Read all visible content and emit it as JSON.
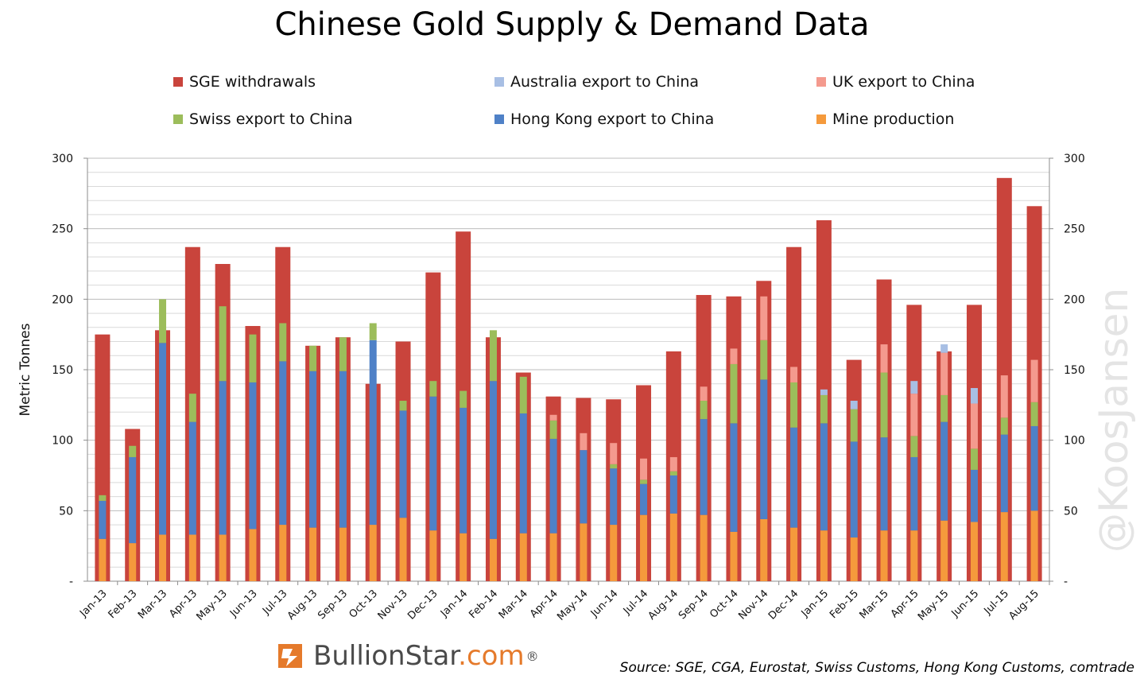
{
  "title": "Chinese Gold Supply & Demand Data",
  "watermark": "@KoosJansen",
  "logo": {
    "name_main": "BullionStar",
    "name_suffix": ".com",
    "reg": "®"
  },
  "source": "Source: SGE, CGA, Eurostat, Swiss Customs, Hong Kong Customs, comtrade",
  "legend": [
    {
      "label": "SGE withdrawals",
      "color": "#c9443c"
    },
    {
      "label": "Australia export to China",
      "color": "#a8bfe4"
    },
    {
      "label": "UK export to China",
      "color": "#f49a8e"
    },
    {
      "label": "Swiss export to China",
      "color": "#9cbd5b"
    },
    {
      "label": "Hong Kong export to China",
      "color": "#4f81c7"
    },
    {
      "label": "Mine production",
      "color": "#f59a3c"
    }
  ],
  "chart_data": {
    "type": "bar",
    "title": "Chinese Gold Supply & Demand Data",
    "ylabel": "Metric Tonnes",
    "ylim": [
      0,
      300
    ],
    "yticks": [
      "-",
      "50",
      "100",
      "150",
      "200",
      "250",
      "300"
    ],
    "grid": true,
    "legend_position": "top",
    "categories": [
      "Jan-13",
      "Feb-13",
      "Mar-13",
      "Apr-13",
      "May-13",
      "Jun-13",
      "Jul-13",
      "Aug-13",
      "Sep-13",
      "Oct-13",
      "Nov-13",
      "Dec-13",
      "Jan-14",
      "Feb-14",
      "Mar-14",
      "Apr-14",
      "May-14",
      "Jun-14",
      "Jul-14",
      "Aug-14",
      "Sep-14",
      "Oct-14",
      "Nov-14",
      "Dec-14",
      "Jan-15",
      "Feb-15",
      "Mar-15",
      "Apr-15",
      "May-15",
      "Jun-15",
      "Jul-15",
      "Aug-15"
    ],
    "sge_withdrawals": [
      175,
      108,
      178,
      237,
      225,
      181,
      237,
      167,
      173,
      140,
      170,
      219,
      248,
      173,
      148,
      131,
      130,
      129,
      139,
      163,
      203,
      202,
      213,
      237,
      256,
      157,
      214,
      196,
      163,
      196,
      286,
      266
    ],
    "stacked_imports": {
      "order": [
        "Mine production",
        "Hong Kong export to China",
        "Swiss export to China",
        "UK export to China",
        "Australia export to China"
      ],
      "series": [
        {
          "name": "Mine production",
          "values": [
            30,
            27,
            33,
            33,
            33,
            37,
            40,
            38,
            38,
            40,
            45,
            36,
            34,
            30,
            34,
            34,
            41,
            40,
            47,
            48,
            47,
            35,
            44,
            38,
            36,
            31,
            36,
            36,
            43,
            42,
            49,
            50
          ]
        },
        {
          "name": "Hong Kong export to China",
          "values": [
            27,
            61,
            136,
            80,
            109,
            104,
            116,
            111,
            111,
            131,
            76,
            95,
            89,
            112,
            85,
            67,
            52,
            40,
            22,
            27,
            68,
            77,
            99,
            71,
            76,
            68,
            66,
            52,
            70,
            37,
            55,
            60
          ]
        },
        {
          "name": "Swiss export to China",
          "values": [
            4,
            8,
            31,
            20,
            53,
            34,
            27,
            18,
            24,
            12,
            7,
            11,
            12,
            36,
            26,
            13,
            0,
            3,
            3,
            3,
            13,
            42,
            28,
            32,
            20,
            23,
            46,
            15,
            19,
            15,
            12,
            17
          ]
        },
        {
          "name": "UK export to China",
          "values": [
            0,
            0,
            0,
            0,
            0,
            0,
            0,
            0,
            0,
            0,
            0,
            0,
            0,
            0,
            0,
            4,
            12,
            15,
            15,
            10,
            10,
            11,
            31,
            11,
            0,
            0,
            20,
            30,
            30,
            32,
            30,
            30
          ]
        },
        {
          "name": "Australia export to China",
          "values": [
            0,
            0,
            0,
            0,
            0,
            0,
            0,
            0,
            0,
            0,
            0,
            0,
            0,
            0,
            0,
            0,
            0,
            0,
            0,
            0,
            0,
            0,
            0,
            0,
            4,
            6,
            0,
            9,
            6,
            11,
            0,
            0
          ]
        }
      ]
    }
  }
}
